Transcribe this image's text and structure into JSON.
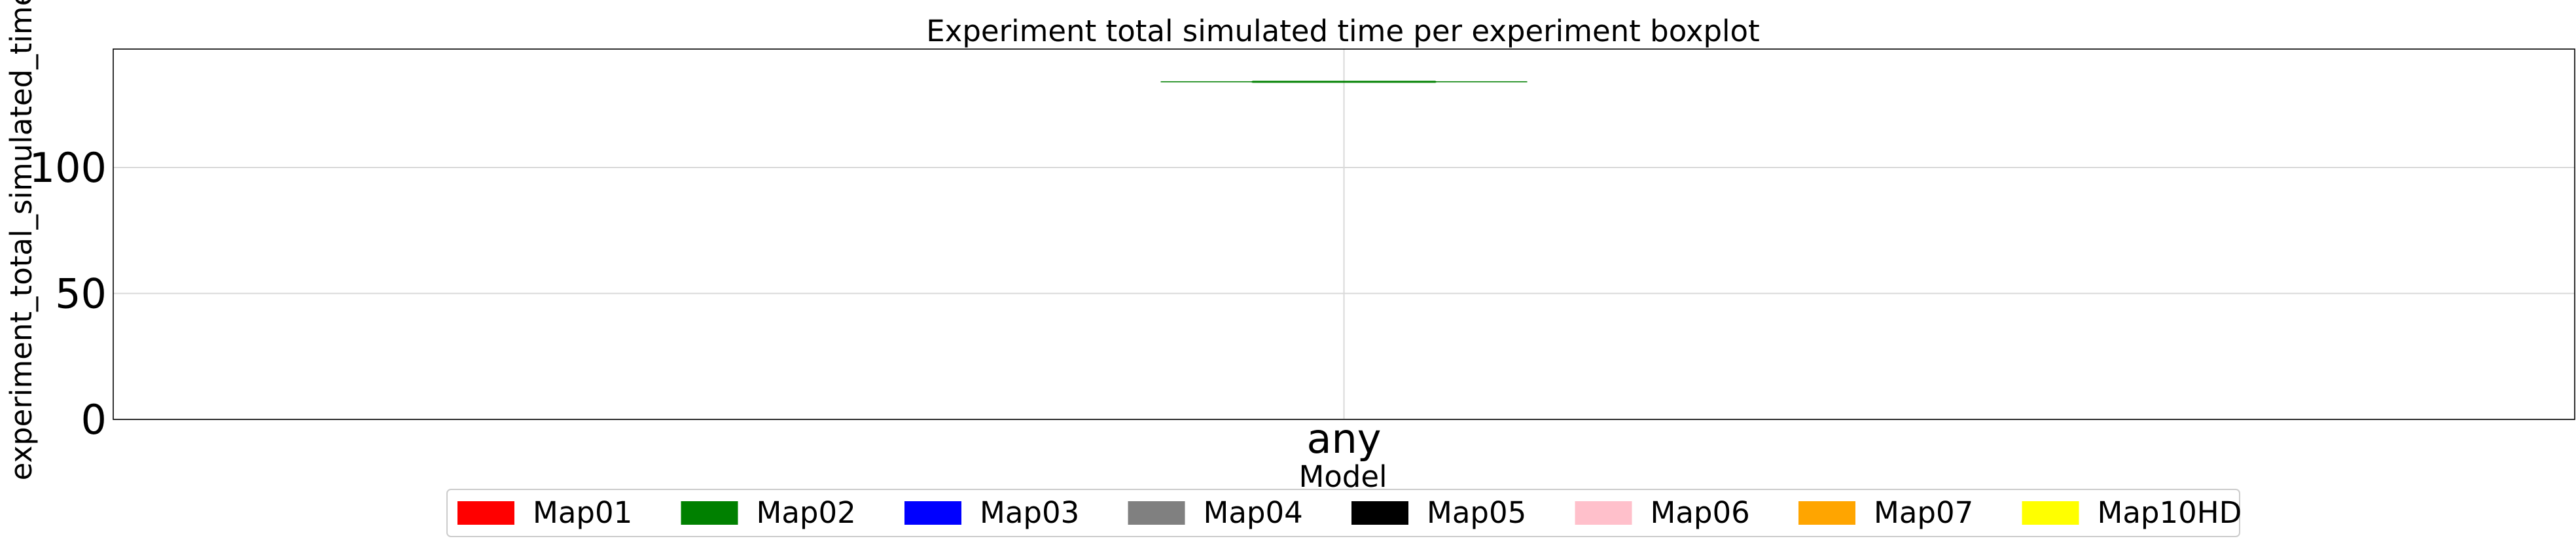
{
  "chart_data": {
    "type": "boxplot",
    "title": "Experiment total simulated time per experiment boxplot",
    "xlabel": "Model",
    "ylabel": "experiment_total_simulated_time",
    "categories": [
      "any"
    ],
    "ylim": [
      0,
      147
    ],
    "yticks": [
      0,
      50,
      100
    ],
    "grid": true,
    "series": [
      {
        "name": "Map02",
        "category": "any",
        "min": 134,
        "q1": 134,
        "median": 134,
        "q3": 134,
        "max": 134
      }
    ],
    "legend": {
      "placement": "bottom-center",
      "entries": [
        {
          "label": "Map01",
          "color": "#ff0000"
        },
        {
          "label": "Map02",
          "color": "#008000"
        },
        {
          "label": "Map03",
          "color": "#0000ff"
        },
        {
          "label": "Map04",
          "color": "#808080"
        },
        {
          "label": "Map05",
          "color": "#000000"
        },
        {
          "label": "Map06",
          "color": "#ffc0cb"
        },
        {
          "label": "Map07",
          "color": "#ffa500"
        },
        {
          "label": "Map10HD",
          "color": "#ffff00"
        }
      ]
    }
  }
}
